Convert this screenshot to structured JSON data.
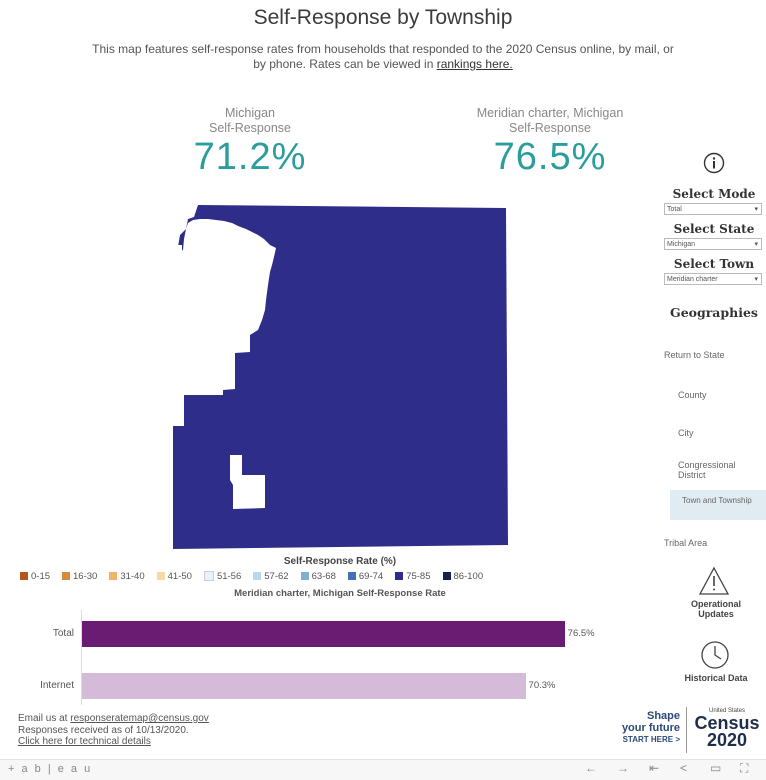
{
  "header": {
    "title": "Self-Response by Township",
    "subtitle_text": "This map features self-response rates from households that responded to the 2020 Census online, by mail, or by phone. Rates can be viewed in ",
    "subtitle_link": "rankings here."
  },
  "kpis": {
    "state": {
      "label_line1": "Michigan",
      "label_line2": "Self-Response",
      "value": "71.2%"
    },
    "town": {
      "label_line1": "Meridian charter, Michigan",
      "label_line2": "Self-Response",
      "value": "76.5%"
    }
  },
  "map": {
    "fill_color": "#2e2e8a"
  },
  "legend": {
    "title": "Self-Response Rate (%)",
    "items": [
      {
        "label": "0-15",
        "color": "#b3561e"
      },
      {
        "label": "16-30",
        "color": "#d98c3a"
      },
      {
        "label": "31-40",
        "color": "#f0b36b"
      },
      {
        "label": "41-50",
        "color": "#f4dba6"
      },
      {
        "label": "51-56",
        "color": "#e9f2f7"
      },
      {
        "label": "57-62",
        "color": "#b7d9e9"
      },
      {
        "label": "63-68",
        "color": "#7fb0d6"
      },
      {
        "label": "69-74",
        "color": "#3f73b5"
      },
      {
        "label": "75-85",
        "color": "#2e2e8a"
      },
      {
        "label": "86-100",
        "color": "#1b1f4f"
      }
    ]
  },
  "chart_data": {
    "type": "bar",
    "title": "Meridian charter, Michigan Self-Response Rate",
    "categories": [
      "Total",
      "Internet"
    ],
    "values": [
      76.5,
      70.3
    ],
    "value_labels": [
      "76.5%",
      "70.3%"
    ],
    "colors": [
      "#6a1b72",
      "#d4bcd8"
    ],
    "xlim": [
      0,
      84
    ]
  },
  "sidebar": {
    "info_icon": "info-icon",
    "select_mode_label": "Select Mode",
    "select_mode_value": "Total",
    "select_state_label": "Select State",
    "select_state_value": "Michigan",
    "select_town_label": "Select Town",
    "select_town_value": "Meridian charter",
    "geographies_label": "Geographies",
    "geo_items": [
      {
        "label": "Return to State"
      },
      {
        "label": "County"
      },
      {
        "label": "City"
      },
      {
        "label": "Congressional District"
      },
      {
        "label": "Town and Township"
      },
      {
        "label": "Tribal Area"
      }
    ],
    "operational_label": "Operational Updates",
    "historical_label": "Historical Data",
    "shape_line1": "Shape",
    "shape_line2": "your future",
    "shape_line3": "START HERE >",
    "census_top": "United States",
    "census_word": "Census",
    "census_year": "2020"
  },
  "footer": {
    "email_prefix": "Email us at ",
    "email": "responseratemap@census.gov",
    "responses": "Responses received as of 10/13/2020.",
    "technical_link": "Click here for technical details"
  },
  "toolbar": {
    "logo": "+ a b | e a u"
  }
}
